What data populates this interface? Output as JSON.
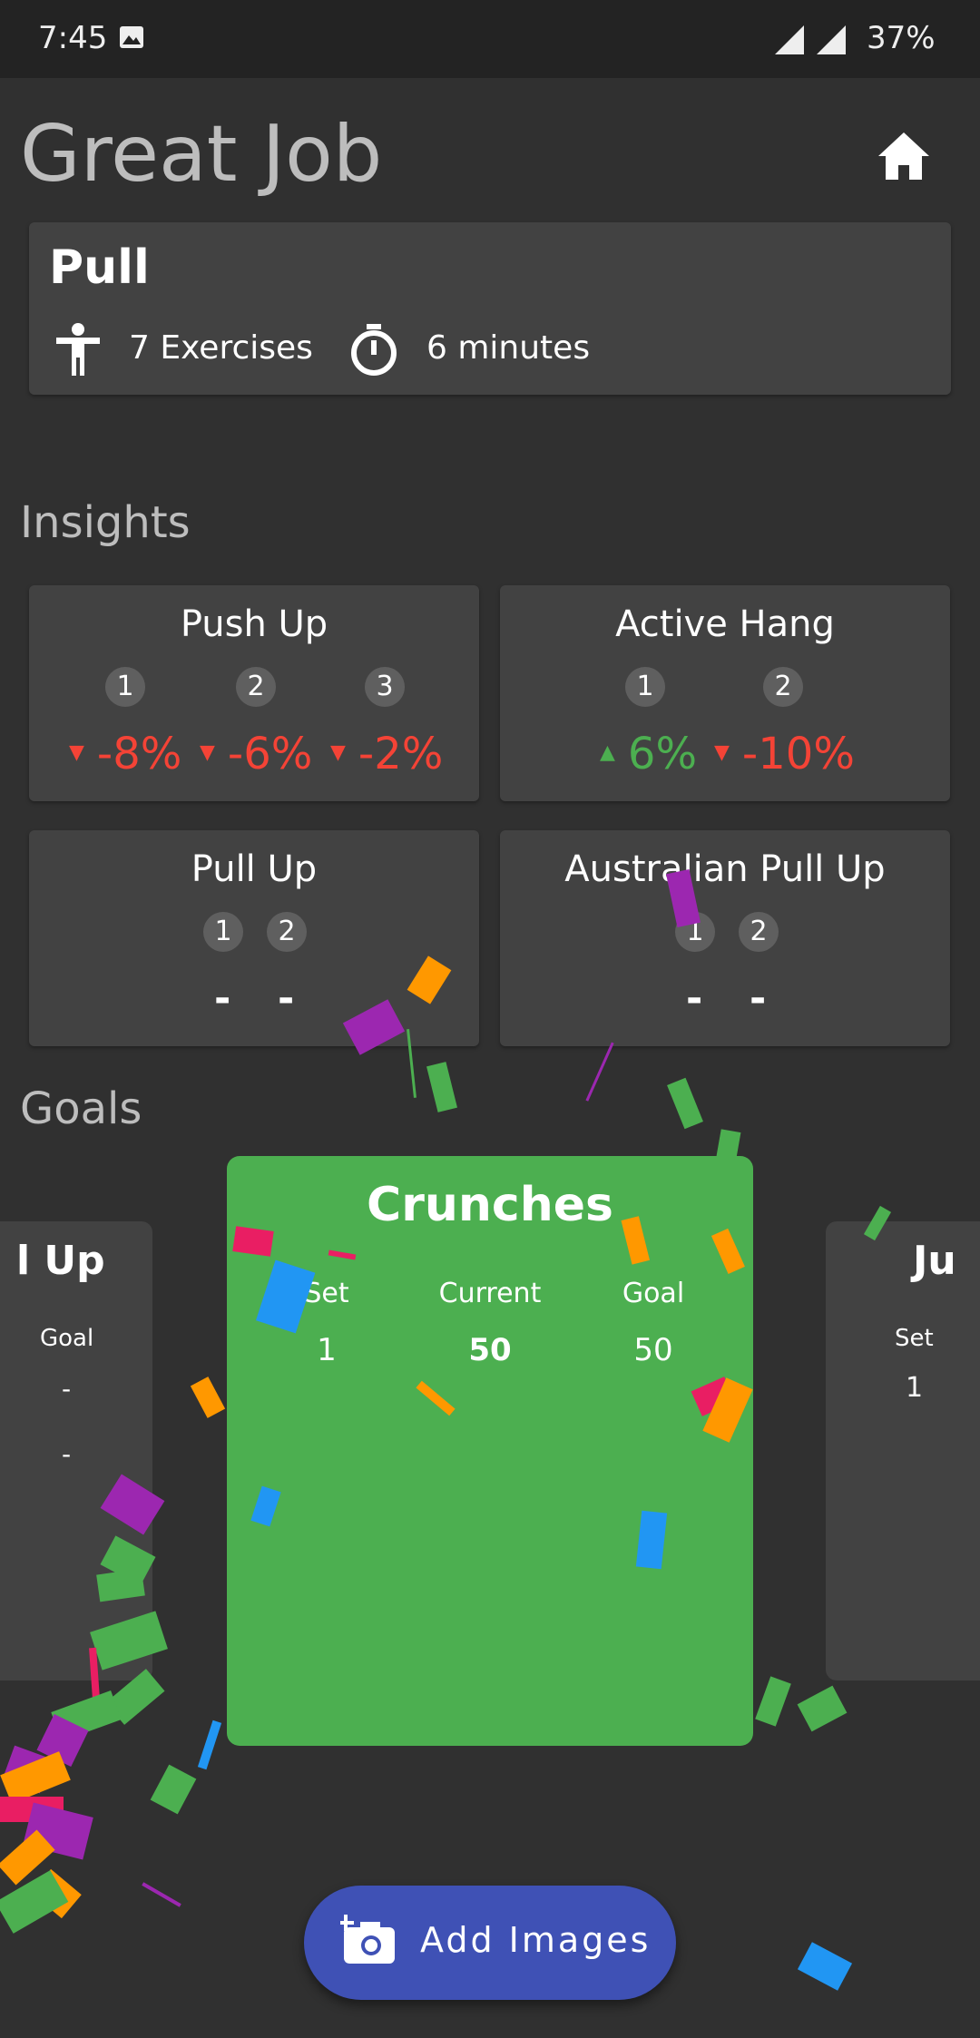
{
  "status_bar": {
    "time": "7:45",
    "battery": "37%"
  },
  "header": {
    "title": "Great Job"
  },
  "workout": {
    "name": "Pull",
    "exercises": "7 Exercises",
    "duration": "6 minutes"
  },
  "insights": {
    "title": "Insights",
    "cards": [
      {
        "name": "Push Up",
        "sets": [
          "1",
          "2",
          "3"
        ],
        "deltas": [
          "-8%",
          "-6%",
          "-2%"
        ],
        "dirs": [
          "down",
          "down",
          "down"
        ]
      },
      {
        "name": "Active Hang",
        "sets": [
          "1",
          "2"
        ],
        "deltas": [
          "6%",
          "-10%"
        ],
        "dirs": [
          "up",
          "down"
        ]
      },
      {
        "name": "Pull Up",
        "sets": [
          "1",
          "2"
        ],
        "deltas": [
          "-",
          "-"
        ]
      },
      {
        "name": "Australian Pull Up",
        "sets": [
          "1",
          "2"
        ],
        "deltas": [
          "-",
          "-"
        ]
      }
    ]
  },
  "goals": {
    "title": "Goals",
    "left_card": {
      "title": "l Up",
      "goal_header": "Goal",
      "values": [
        "-",
        "-"
      ]
    },
    "main_card": {
      "title": "Crunches",
      "headers": {
        "set": "Set",
        "current": "Current",
        "goal": "Goal"
      },
      "row": {
        "set": "1",
        "current": "50",
        "goal": "50"
      }
    },
    "right_card": {
      "title": "Ju",
      "set_header": "Set",
      "set_value": "1"
    }
  },
  "fab": {
    "label": "Add Images",
    "icon": "add-photo-icon"
  },
  "colors": {
    "background": "#303030",
    "card": "#424242",
    "goal_active": "#4caf50",
    "fab": "#3f51b5",
    "negative": "#f44336",
    "positive": "#4caf50"
  }
}
